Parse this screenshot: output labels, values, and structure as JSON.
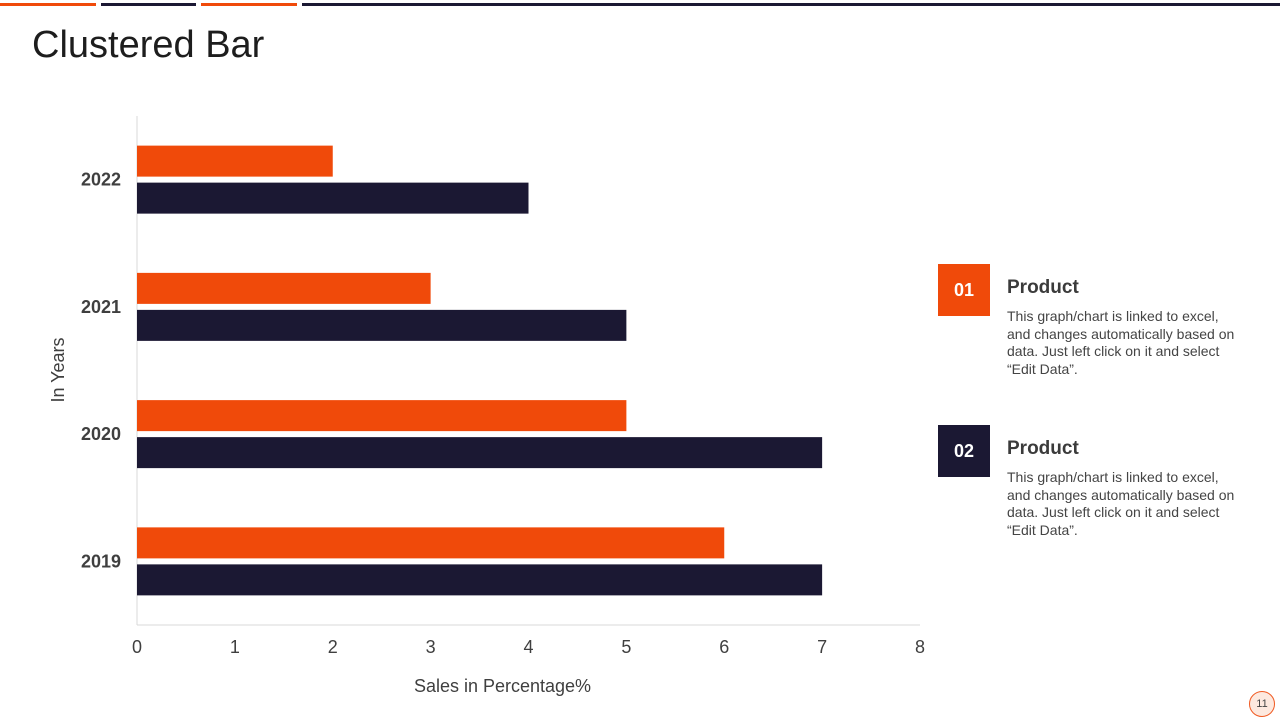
{
  "slide": {
    "title": "Clustered Bar",
    "page_number": "11"
  },
  "colors": {
    "orange": "#f04a0a",
    "navy": "#1b1833"
  },
  "legend": [
    {
      "badge": "01",
      "heading": "Product",
      "description": "This graph/chart is linked to excel, and changes automatically based on data. Just left click on it and select “Edit Data”.",
      "color": "#f04a0a"
    },
    {
      "badge": "02",
      "heading": "Product",
      "description": "This graph/chart is linked to excel, and changes automatically based on data. Just left click on it and select “Edit Data”.",
      "color": "#1b1833"
    }
  ],
  "chart_data": {
    "type": "bar",
    "orientation": "horizontal",
    "title": "",
    "xlabel": "Sales in Percentage%",
    "ylabel": "In Years",
    "categories": [
      "2022",
      "2021",
      "2020",
      "2019"
    ],
    "series": [
      {
        "values": [
          2,
          3,
          5,
          6
        ],
        "color": "#f04a0a"
      },
      {
        "values": [
          4,
          5,
          7,
          7
        ],
        "color": "#1b1833"
      }
    ],
    "xlim": [
      0,
      8
    ],
    "xticks": [
      "0",
      "1",
      "2",
      "3",
      "4",
      "5",
      "6",
      "7",
      "8"
    ],
    "grid": false
  }
}
